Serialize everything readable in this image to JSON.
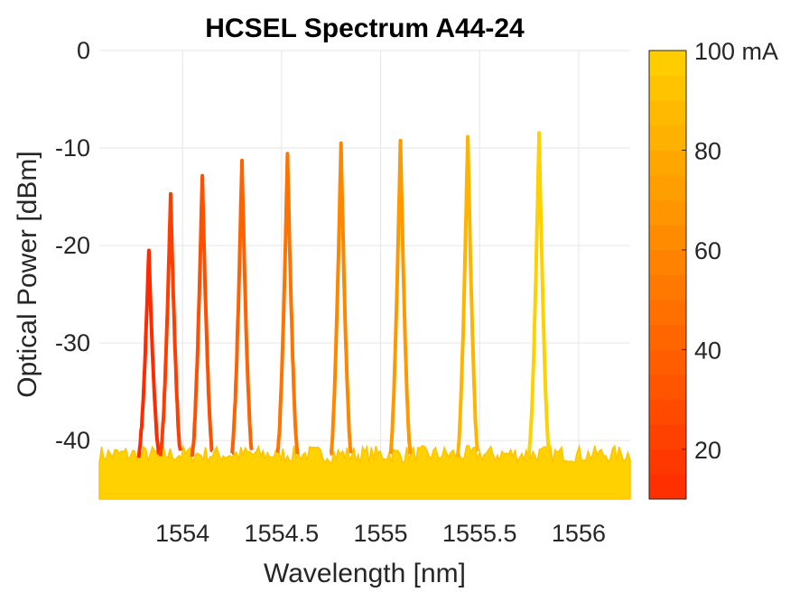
{
  "chart_data": {
    "type": "line",
    "title": "HCSEL Spectrum A44-24",
    "xlabel": "Wavelength [nm]",
    "ylabel": "Optical Power [dBm]",
    "xlim": [
      1553.58,
      1556.26
    ],
    "ylim": [
      -46,
      0
    ],
    "xticks": [
      1554,
      1554.5,
      1555,
      1555.5,
      1556
    ],
    "xtick_labels": [
      "1554",
      "1554.5",
      "1555",
      "1555.5",
      "1556"
    ],
    "yticks": [
      0,
      -10,
      -20,
      -30,
      -40
    ],
    "ytick_labels": [
      "0",
      "-10",
      "-20",
      "-30",
      "-40"
    ],
    "grid": true,
    "noise_floor_dbm": -41.5,
    "series": [
      {
        "current_mA": 10,
        "peak_wavelength_nm": 1553.83,
        "peak_power_dbm": -20.5
      },
      {
        "current_mA": 20,
        "peak_wavelength_nm": 1553.94,
        "peak_power_dbm": -14.7
      },
      {
        "current_mA": 30,
        "peak_wavelength_nm": 1554.1,
        "peak_power_dbm": -12.6
      },
      {
        "current_mA": 40,
        "peak_wavelength_nm": 1554.3,
        "peak_power_dbm": -11.1
      },
      {
        "current_mA": 50,
        "peak_wavelength_nm": 1554.53,
        "peak_power_dbm": -10.3
      },
      {
        "current_mA": 60,
        "peak_wavelength_nm": 1554.8,
        "peak_power_dbm": -9.5
      },
      {
        "current_mA": 70,
        "peak_wavelength_nm": 1555.1,
        "peak_power_dbm": -9.0
      },
      {
        "current_mA": 85,
        "peak_wavelength_nm": 1555.44,
        "peak_power_dbm": -8.6
      },
      {
        "current_mA": 100,
        "peak_wavelength_nm": 1555.8,
        "peak_power_dbm": -8.3
      }
    ],
    "colorbar": {
      "range": [
        10,
        100
      ],
      "ticks": [
        20,
        40,
        60,
        80,
        100
      ],
      "tick_labels": [
        "20",
        "40",
        "60",
        "80",
        "100 mA"
      ],
      "color_low": "#ff2a00",
      "color_high": "#ffd100"
    }
  }
}
